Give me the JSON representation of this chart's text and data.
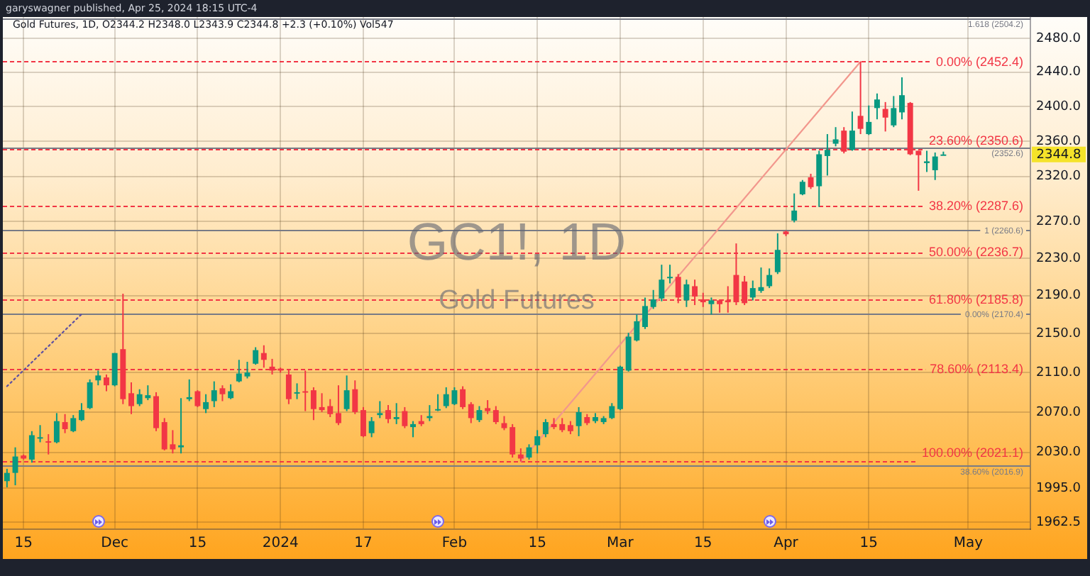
{
  "chart_data": {
    "type": "candlestick",
    "title": "GC1!, 1D",
    "subtitle": "Gold Futures",
    "annotations": [
      "garyswagner published, Apr 25, 2024 18:15 UTC-4",
      "Gold Futures, 1D, O2344.2 H2348.0 L2343.9 C2344.8 +2.3 (+0.10%) Vol547",
      "2344.8"
    ],
    "categories": [
      null,
      null,
      "15",
      null,
      null,
      null,
      null,
      null,
      null,
      null,
      null,
      null,
      null,
      "Dec",
      null,
      null,
      null,
      null,
      null,
      null,
      null,
      null,
      null,
      "15",
      null,
      null,
      null,
      null,
      null,
      null,
      null,
      null,
      null,
      "2024",
      null,
      null,
      null,
      null,
      null,
      null,
      null,
      null,
      null,
      "17",
      null,
      null,
      null,
      null,
      null,
      null,
      null,
      null,
      null,
      null,
      "Feb",
      null,
      null,
      null,
      null,
      null,
      null,
      null,
      null,
      null,
      "15",
      null,
      null,
      null,
      null,
      null,
      null,
      null,
      null,
      null,
      "Mar",
      null,
      null,
      null,
      null,
      null,
      null,
      null,
      null,
      null,
      "15",
      null,
      null,
      null,
      null,
      null,
      null,
      null,
      null,
      null,
      "Apr",
      null,
      null,
      null,
      null,
      null,
      null,
      null,
      null,
      null,
      "15",
      null,
      null,
      null,
      null,
      null,
      null,
      null,
      null,
      null,
      null,
      null,
      "May",
      null,
      null,
      null,
      null,
      null,
      null,
      null
    ],
    "ohlc": [
      [
        2002,
        2014,
        1996,
        2010
      ],
      [
        2010,
        2035,
        1998,
        2026
      ],
      [
        2027,
        2028,
        2023,
        2024
      ],
      [
        2023,
        2051,
        2020,
        2047
      ],
      [
        2044,
        2057,
        2040,
        2045
      ],
      [
        2041,
        2048,
        2028,
        2040
      ],
      [
        2040,
        2069,
        2039,
        2061
      ],
      [
        2060,
        2068,
        2049,
        2053
      ],
      [
        2051,
        2067,
        2050,
        2064
      ],
      [
        2062,
        2079,
        2061,
        2072
      ],
      [
        2074,
        2103,
        2073,
        2100
      ],
      [
        2102,
        2112,
        2097,
        2107
      ],
      [
        2105,
        2108,
        2091,
        2097
      ],
      [
        2097,
        2130,
        2096,
        2130
      ],
      [
        2134,
        2192,
        2078,
        2083
      ],
      [
        2089,
        2100,
        2068,
        2076
      ],
      [
        2078,
        2093,
        2076,
        2088
      ],
      [
        2084,
        2097,
        2082,
        2087
      ],
      [
        2086,
        2090,
        2051,
        2054
      ],
      [
        2060,
        2064,
        2032,
        2033
      ],
      [
        2038,
        2052,
        2029,
        2033
      ],
      [
        2035,
        2084,
        2029,
        2037
      ],
      [
        2083,
        2103,
        2081,
        2085
      ],
      [
        2091,
        2092,
        2075,
        2076
      ],
      [
        2073,
        2088,
        2069,
        2080
      ],
      [
        2081,
        2101,
        2075,
        2092
      ],
      [
        2094,
        2097,
        2081,
        2088
      ],
      [
        2084,
        2098,
        2083,
        2091
      ],
      [
        2101,
        2123,
        2100,
        2109
      ],
      [
        2106,
        2121,
        2104,
        2110
      ],
      [
        2119,
        2136,
        2118,
        2133
      ],
      [
        2130,
        2138,
        2115,
        2123
      ],
      [
        2116,
        2124,
        2108,
        2112
      ],
      [
        2114,
        2115,
        2110,
        2112
      ],
      [
        2108,
        2113,
        2078,
        2083
      ],
      [
        2089,
        2099,
        2083,
        2090
      ],
      [
        2091,
        2112,
        2071,
        2090
      ],
      [
        2092,
        2095,
        2062,
        2073
      ],
      [
        2075,
        2089,
        2070,
        2072
      ],
      [
        2076,
        2083,
        2065,
        2068
      ],
      [
        2069,
        2097,
        2057,
        2059
      ],
      [
        2073,
        2107,
        2071,
        2092
      ],
      [
        2093,
        2102,
        2068,
        2070
      ],
      [
        2072,
        2075,
        2045,
        2046
      ],
      [
        2049,
        2065,
        2045,
        2061
      ],
      [
        2067,
        2081,
        2064,
        2069
      ],
      [
        2072,
        2077,
        2059,
        2063
      ],
      [
        2063,
        2079,
        2058,
        2065
      ],
      [
        2071,
        2075,
        2054,
        2056
      ],
      [
        2055,
        2061,
        2045,
        2058
      ],
      [
        2061,
        2067,
        2056,
        2058
      ],
      [
        2064,
        2077,
        2061,
        2066
      ],
      [
        2072,
        2088,
        2071,
        2073
      ],
      [
        2076,
        2095,
        2074,
        2088
      ],
      [
        2078,
        2095,
        2077,
        2092
      ],
      [
        2093,
        2096,
        2073,
        2075
      ],
      [
        2078,
        2080,
        2059,
        2064
      ],
      [
        2062,
        2076,
        2060,
        2072
      ],
      [
        2074,
        2082,
        2068,
        2071
      ],
      [
        2072,
        2076,
        2058,
        2060
      ],
      [
        2059,
        2066,
        2052,
        2054
      ],
      [
        2055,
        2058,
        2025,
        2028
      ],
      [
        2028,
        2034,
        2021.1,
        2024
      ],
      [
        2025,
        2038,
        2023,
        2035
      ],
      [
        2037,
        2052,
        2029,
        2046
      ],
      [
        2048,
        2063,
        2045,
        2060
      ],
      [
        2058,
        2064,
        2053,
        2055
      ],
      [
        2058,
        2064,
        2050,
        2052
      ],
      [
        2057,
        2061,
        2048,
        2051
      ],
      [
        2056,
        2075,
        2046,
        2070
      ],
      [
        2065,
        2068,
        2057,
        2059
      ],
      [
        2061,
        2069,
        2059,
        2065
      ],
      [
        2060,
        2066,
        2058,
        2064
      ],
      [
        2064,
        2079,
        2063,
        2076
      ],
      [
        2073,
        2117,
        2072,
        2116
      ],
      [
        2112,
        2151,
        2111,
        2147
      ],
      [
        2143,
        2170,
        2142,
        2163
      ],
      [
        2157,
        2188,
        2155,
        2179
      ],
      [
        2178,
        2196,
        2176,
        2186
      ],
      [
        2187,
        2223,
        2184,
        2207
      ],
      [
        2209,
        2223,
        2203,
        2210
      ],
      [
        2210,
        2213,
        2182,
        2188
      ],
      [
        2185,
        2207,
        2178,
        2202
      ],
      [
        2200,
        2207,
        2180,
        2189
      ],
      [
        2186,
        2193,
        2178,
        2183
      ],
      [
        2181,
        2188,
        2170,
        2185
      ],
      [
        2185,
        2186,
        2172,
        2181
      ],
      [
        2185,
        2200,
        2172,
        2183
      ],
      [
        2212,
        2246,
        2180,
        2183
      ],
      [
        2205,
        2211,
        2180,
        2182
      ],
      [
        2188,
        2206,
        2185,
        2198
      ],
      [
        2195,
        2220,
        2193,
        2199
      ],
      [
        2200,
        2219,
        2198,
        2212
      ],
      [
        2215,
        2257,
        2213,
        2239
      ],
      [
        2259,
        2260,
        2254,
        2256
      ],
      [
        2271,
        2301,
        2269,
        2282
      ],
      [
        2300,
        2316,
        2299,
        2314
      ],
      [
        2319,
        2323,
        2306,
        2308
      ],
      [
        2309,
        2349,
        2286,
        2345
      ],
      [
        2343,
        2368,
        2321,
        2350
      ],
      [
        2357,
        2376,
        2354,
        2362
      ],
      [
        2372,
        2376,
        2346,
        2348
      ],
      [
        2350,
        2394,
        2349,
        2372
      ],
      [
        2389,
        2452.4,
        2368,
        2374
      ],
      [
        2368,
        2401,
        2367,
        2382
      ],
      [
        2398,
        2415,
        2385,
        2408
      ],
      [
        2397,
        2405,
        2371,
        2387
      ],
      [
        2378,
        2412,
        2376,
        2398
      ],
      [
        2393,
        2434,
        2385,
        2413
      ],
      [
        2404,
        2405,
        2344,
        2345
      ],
      [
        2349,
        2349,
        2304,
        2344
      ],
      [
        2335,
        2349,
        2325,
        2337
      ],
      [
        2327,
        2347,
        2316,
        2342.5
      ],
      [
        2344.2,
        2348.0,
        2343.9,
        2344.8
      ],
      null,
      null,
      null,
      null,
      null,
      null,
      null,
      null,
      null,
      null
    ],
    "colors": [
      "#089981",
      "#089981",
      "#f23645",
      "#089981",
      "#089981",
      "#f23645",
      "#089981",
      "#f23645",
      "#089981",
      "#089981",
      "#089981",
      "#089981",
      "#f23645",
      "#089981",
      "#f23645",
      "#f23645",
      "#089981",
      "#089981",
      "#f23645",
      "#f23645",
      "#f23645",
      "#089981",
      "#089981",
      "#f23645",
      "#089981",
      "#089981",
      "#f23645",
      "#089981",
      "#089981",
      "#089981",
      "#089981",
      "#f23645",
      "#f23645",
      "#f23645",
      "#f23645",
      "#089981",
      "#f23645",
      "#f23645",
      "#f23645",
      "#f23645",
      "#f23645",
      "#089981",
      "#f23645",
      "#f23645",
      "#089981",
      "#089981",
      "#f23645",
      "#089981",
      "#f23645",
      "#089981",
      "#f23645",
      "#089981",
      "#089981",
      "#089981",
      "#089981",
      "#f23645",
      "#f23645",
      "#089981",
      "#f23645",
      "#f23645",
      "#f23645",
      "#f23645",
      "#f23645",
      "#089981",
      "#089981",
      "#089981",
      "#f23645",
      "#f23645",
      "#f23645",
      "#089981",
      "#f23645",
      "#089981",
      "#089981",
      "#089981",
      "#089981",
      "#089981",
      "#089981",
      "#089981",
      "#089981",
      "#089981",
      "#089981",
      "#f23645",
      "#089981",
      "#f23645",
      "#f23645",
      "#089981",
      "#f23645",
      "#f23645",
      "#f23645",
      "#f23645",
      "#089981",
      "#089981",
      "#089981",
      "#089981",
      "#f23645",
      "#089981",
      "#089981",
      "#f23645",
      "#089981",
      "#089981",
      "#089981",
      "#f23645",
      "#089981",
      "#f23645",
      "#089981",
      "#089981",
      "#f23645",
      "#089981",
      "#089981",
      "#f23645",
      "#f23645",
      "#089981",
      "#089981",
      "#089981",
      null,
      null,
      null,
      null,
      null,
      null,
      null,
      null,
      null,
      null
    ],
    "series": [
      {
        "type": "line",
        "color": "#5e4fa2",
        "line_style": "dotted",
        "values": [
          2096,
          null,
          null,
          null,
          null,
          null,
          null,
          null,
          null,
          2170.4,
          null,
          null,
          null,
          null,
          null,
          null,
          null,
          null,
          null,
          null,
          null,
          null,
          null,
          null,
          null,
          null,
          null,
          null,
          null,
          null,
          null,
          null,
          null,
          null,
          null,
          null,
          null,
          null,
          null,
          null,
          null,
          null,
          null,
          null,
          null,
          null,
          null,
          null,
          null,
          null,
          null,
          null,
          null,
          null,
          null,
          null,
          null,
          null,
          null,
          null,
          null,
          null,
          null,
          null,
          null,
          null,
          null,
          null,
          null,
          null,
          null,
          null,
          null,
          null,
          null,
          null,
          null,
          null,
          null,
          null,
          null,
          null,
          null,
          null,
          null,
          null,
          null,
          null,
          null,
          null,
          null,
          null,
          null,
          null,
          null,
          null,
          null,
          null,
          null,
          null,
          null,
          null,
          null,
          null,
          null,
          null,
          null,
          null,
          null,
          null,
          null,
          null,
          null,
          null,
          null,
          null,
          null,
          null,
          null,
          null,
          null,
          null,
          null,
          null
        ]
      },
      {
        "type": "line",
        "color": "#f2978d",
        "line_style": "solid",
        "values": [
          null,
          null,
          null,
          null,
          null,
          null,
          null,
          null,
          null,
          null,
          null,
          null,
          null,
          null,
          null,
          null,
          null,
          null,
          null,
          null,
          null,
          null,
          null,
          null,
          null,
          null,
          null,
          null,
          null,
          null,
          null,
          null,
          null,
          null,
          null,
          null,
          null,
          null,
          null,
          null,
          null,
          null,
          null,
          null,
          null,
          null,
          null,
          null,
          null,
          null,
          null,
          null,
          null,
          null,
          null,
          null,
          null,
          null,
          null,
          null,
          null,
          null,
          2021.1,
          null,
          null,
          null,
          null,
          null,
          null,
          null,
          null,
          null,
          null,
          null,
          null,
          null,
          null,
          null,
          null,
          null,
          null,
          null,
          null,
          null,
          null,
          null,
          null,
          null,
          null,
          null,
          null,
          null,
          null,
          null,
          null,
          null,
          null,
          null,
          null,
          null,
          null,
          null,
          null,
          2452.4,
          null,
          null,
          null,
          null,
          null,
          null,
          null,
          null,
          null,
          null,
          null,
          null,
          null,
          null,
          null,
          null,
          null,
          null,
          null,
          null
        ]
      }
    ],
    "ylim": [
      1956,
      2506
    ],
    "log": true,
    "grid": true,
    "yticks": [
      {
        "value": 1962.5,
        "label": "1962.5"
      },
      {
        "value": 1995,
        "label": "1995.0"
      },
      {
        "value": 2030,
        "label": "2030.0"
      },
      {
        "value": 2070,
        "label": "2070.0"
      },
      {
        "value": 2110,
        "label": "2110.0"
      },
      {
        "value": 2150,
        "label": "2150.0"
      },
      {
        "value": 2190,
        "label": "2190.0"
      },
      {
        "value": 2230,
        "label": "2230.0"
      },
      {
        "value": 2270,
        "label": "2270.0"
      },
      {
        "value": 2320,
        "label": "2320.0"
      },
      {
        "value": 2360,
        "label": "2360.0"
      },
      {
        "value": 2400,
        "label": "2400.0"
      },
      {
        "value": 2440,
        "label": "2440.0"
      },
      {
        "value": 2480,
        "label": "2480.0"
      }
    ],
    "ref_lines": [
      {
        "axis": "y",
        "value": 2504.2,
        "label": "1.618 (2504.2)",
        "color": "#787b86",
        "line_style": "solid"
      },
      {
        "axis": "y",
        "value": 2452.4,
        "label": "0.00% (2452.4)",
        "color": "#f23645",
        "line_style": "dashed"
      },
      {
        "axis": "y",
        "value": 2352.6,
        "label": "(2352.6)",
        "color": "#787b86",
        "line_style": "solid"
      },
      {
        "axis": "y",
        "value": 2350.6,
        "label": "23.60% (2350.6)",
        "color": "#f23645",
        "line_style": "dashed"
      },
      {
        "axis": "y",
        "value": 2287.6,
        "label": "38.20% (2287.6)",
        "color": "#f23645",
        "line_style": "dashed"
      },
      {
        "axis": "y",
        "value": 2260.6,
        "label": "1 (2260.6)",
        "color": "#787b86",
        "line_style": "solid"
      },
      {
        "axis": "y",
        "value": 2236.7,
        "label": "50.00% (2236.7)",
        "color": "#f23645",
        "line_style": "dashed"
      },
      {
        "axis": "y",
        "value": 2185.8,
        "label": "61.80% (2185.8)",
        "color": "#f23645",
        "line_style": "dashed"
      },
      {
        "axis": "y",
        "value": 2170.4,
        "label": "0.00% (2170.4)",
        "color": "#787b86",
        "line_style": "solid"
      },
      {
        "axis": "y",
        "value": 2113.4,
        "label": "78.60% (2113.4)",
        "color": "#f23645",
        "line_style": "dashed"
      },
      {
        "axis": "y",
        "value": 2021.1,
        "label": "100.00% (2021.1)",
        "color": "#f23645",
        "line_style": "dashed"
      },
      {
        "axis": "y",
        "value": 2016.9,
        "label": "38.60% (2016.9)",
        "color": "#787b86",
        "line_style": "solid"
      }
    ]
  }
}
